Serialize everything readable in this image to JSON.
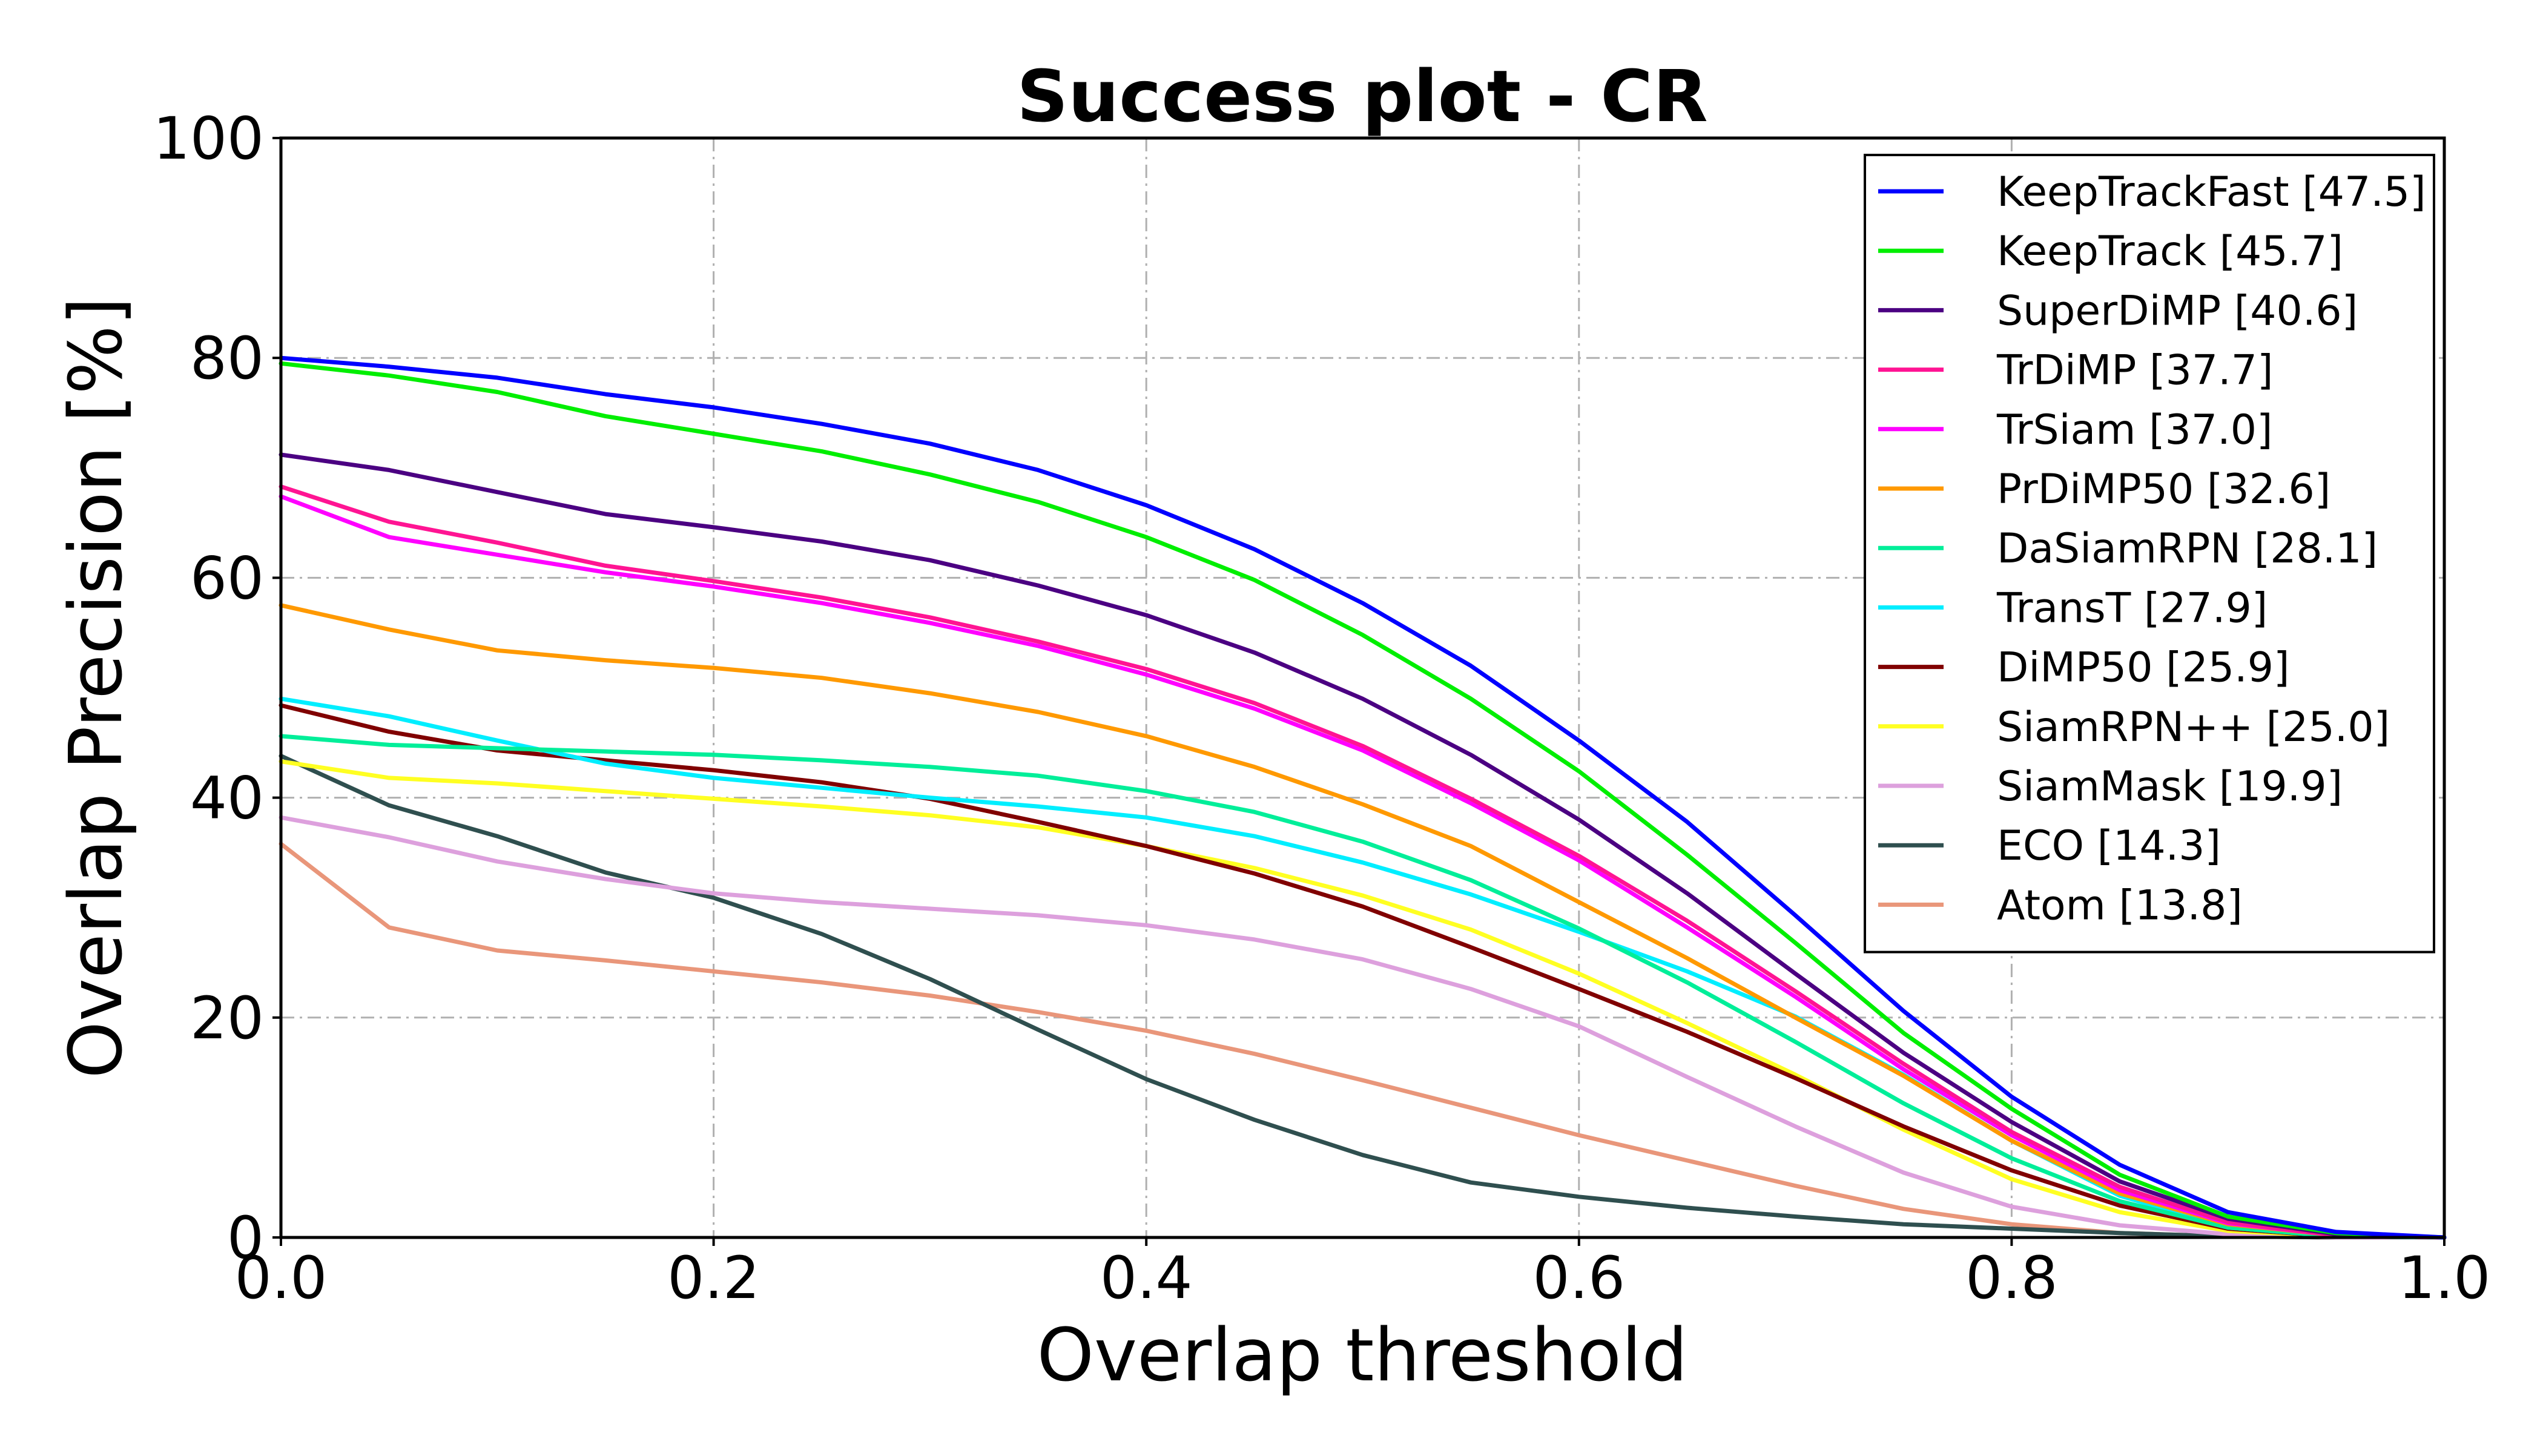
{
  "chart_data": {
    "type": "line",
    "title": "Success plot - CR",
    "xlabel": "Overlap threshold",
    "ylabel": "Overlap Precision [%]",
    "xlim": [
      0,
      1
    ],
    "ylim": [
      0,
      100
    ],
    "xticks": [
      0.0,
      0.2,
      0.4,
      0.6,
      0.8,
      1.0
    ],
    "xtick_labels": [
      "0.0",
      "0.2",
      "0.4",
      "0.6",
      "0.8",
      "1.0"
    ],
    "yticks": [
      0,
      20,
      40,
      60,
      80,
      100
    ],
    "ytick_labels": [
      "0",
      "20",
      "40",
      "60",
      "80",
      "100"
    ],
    "grid": true,
    "legend_position": "top-right",
    "x": [
      0.0,
      0.05,
      0.1,
      0.15,
      0.2,
      0.25,
      0.3,
      0.35,
      0.4,
      0.45,
      0.5,
      0.55,
      0.6,
      0.65,
      0.7,
      0.75,
      0.8,
      0.85,
      0.9,
      0.95,
      1.0
    ],
    "series": [
      {
        "name": "KeepTrackFast [47.5]",
        "color": "#0000ff",
        "values": [
          80.0,
          79.2,
          78.2,
          76.7,
          75.5,
          74.0,
          72.2,
          69.8,
          66.6,
          62.6,
          57.7,
          52.0,
          45.2,
          37.8,
          29.3,
          20.6,
          12.8,
          6.6,
          2.3,
          0.5,
          0.0
        ]
      },
      {
        "name": "KeepTrack [45.7]",
        "color": "#00ee00",
        "values": [
          79.5,
          78.4,
          76.9,
          74.7,
          73.1,
          71.5,
          69.4,
          66.9,
          63.7,
          59.8,
          54.8,
          49.0,
          42.4,
          34.8,
          26.8,
          18.6,
          11.7,
          5.7,
          1.9,
          0.4,
          0.0
        ]
      },
      {
        "name": "SuperDiMP [40.6]",
        "color": "#4b0082",
        "values": [
          71.2,
          69.8,
          67.8,
          65.8,
          64.6,
          63.3,
          61.6,
          59.3,
          56.6,
          53.2,
          49.0,
          43.9,
          38.0,
          31.3,
          24.0,
          16.8,
          10.5,
          5.1,
          1.7,
          0.3,
          0.0
        ]
      },
      {
        "name": "TrDiMP [37.7]",
        "color": "#ff1493",
        "values": [
          68.3,
          65.1,
          63.2,
          61.1,
          59.7,
          58.2,
          56.4,
          54.2,
          51.7,
          48.6,
          44.7,
          39.9,
          34.7,
          28.8,
          22.4,
          15.8,
          9.6,
          4.6,
          1.4,
          0.2,
          0.0
        ]
      },
      {
        "name": "TrSiam [37.0]",
        "color": "#ff00ff",
        "values": [
          67.4,
          63.7,
          62.1,
          60.5,
          59.2,
          57.7,
          55.9,
          53.8,
          51.2,
          48.1,
          44.3,
          39.5,
          34.3,
          28.2,
          21.9,
          15.3,
          9.3,
          4.3,
          1.3,
          0.2,
          0.0
        ]
      },
      {
        "name": "PrDiMP50 [32.6]",
        "color": "#ff9900",
        "values": [
          57.5,
          55.3,
          53.4,
          52.5,
          51.8,
          50.9,
          49.5,
          47.8,
          45.6,
          42.8,
          39.4,
          35.6,
          30.5,
          25.4,
          20.0,
          14.7,
          8.8,
          4.0,
          1.2,
          0.2,
          0.0
        ]
      },
      {
        "name": "DaSiamRPN [28.1]",
        "color": "#00ee99",
        "values": [
          45.6,
          44.8,
          44.5,
          44.2,
          43.9,
          43.4,
          42.8,
          42.0,
          40.6,
          38.7,
          36.0,
          32.5,
          28.1,
          23.2,
          17.8,
          12.2,
          7.2,
          3.3,
          0.9,
          0.1,
          0.0
        ]
      },
      {
        "name": "TransT [27.9]",
        "color": "#00eeff",
        "values": [
          49.0,
          47.4,
          45.2,
          43.1,
          41.8,
          40.9,
          40.0,
          39.2,
          38.2,
          36.5,
          34.1,
          31.2,
          27.8,
          24.2,
          20.1,
          14.8,
          8.8,
          3.8,
          0.9,
          0.1,
          0.0
        ]
      },
      {
        "name": "DiMP50 [25.9]",
        "color": "#800000",
        "values": [
          48.4,
          46.0,
          44.3,
          43.4,
          42.5,
          41.4,
          39.9,
          37.8,
          35.6,
          33.1,
          30.1,
          26.4,
          22.6,
          18.7,
          14.5,
          10.1,
          6.1,
          2.9,
          0.8,
          0.1,
          0.0
        ]
      },
      {
        "name": "SiamRPN++ [25.0]",
        "color": "#ffff22",
        "values": [
          43.3,
          41.8,
          41.3,
          40.6,
          39.9,
          39.2,
          38.4,
          37.3,
          35.6,
          33.6,
          31.1,
          28.0,
          24.0,
          19.5,
          14.8,
          9.8,
          5.3,
          2.3,
          0.6,
          0.1,
          0.0
        ]
      },
      {
        "name": "SiamMask [19.9]",
        "color": "#dda0dd",
        "values": [
          38.2,
          36.4,
          34.2,
          32.6,
          31.3,
          30.5,
          29.9,
          29.3,
          28.4,
          27.1,
          25.3,
          22.6,
          19.2,
          14.6,
          10.1,
          5.9,
          2.8,
          1.1,
          0.3,
          0.0,
          0.0
        ]
      },
      {
        "name": "ECO [14.3]",
        "color": "#2f4f4f",
        "values": [
          43.8,
          39.3,
          36.5,
          33.2,
          30.9,
          27.6,
          23.5,
          18.9,
          14.4,
          10.7,
          7.5,
          5.0,
          3.7,
          2.7,
          1.9,
          1.2,
          0.8,
          0.4,
          0.1,
          0.0,
          0.0
        ]
      },
      {
        "name": "Atom [13.8]",
        "color": "#e9967a",
        "values": [
          35.8,
          28.2,
          26.1,
          25.2,
          24.2,
          23.2,
          22.0,
          20.5,
          18.8,
          16.7,
          14.3,
          11.8,
          9.3,
          7.0,
          4.7,
          2.6,
          1.2,
          0.4,
          0.1,
          0.0,
          0.0
        ]
      }
    ]
  }
}
